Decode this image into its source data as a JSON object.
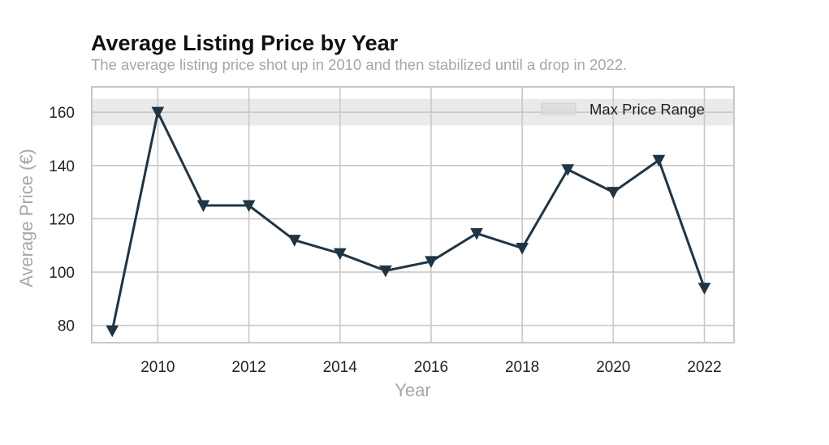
{
  "title": "Average Listing Price by Year",
  "subtitle": "The average listing price shot up in 2010 and then stabilized until a drop in 2022.",
  "chart_data": {
    "type": "line",
    "title": "Average Listing Price by Year",
    "subtitle": "The average listing price shot up in 2010 and then stabilized until a drop in 2022.",
    "xlabel": "Year",
    "ylabel": "Average Price (€)",
    "x": [
      2009,
      2010,
      2011,
      2012,
      2013,
      2014,
      2015,
      2016,
      2017,
      2018,
      2019,
      2020,
      2021,
      2022
    ],
    "series": [
      {
        "values": [
          78,
          160,
          125,
          125,
          112,
          107,
          100.5,
          104,
          114.5,
          109,
          138.5,
          130,
          142,
          94
        ],
        "color": "#1f3544",
        "marker": "triangle-down"
      }
    ],
    "xticks": [
      2010,
      2012,
      2014,
      2016,
      2018,
      2020,
      2022
    ],
    "yticks": [
      80,
      100,
      120,
      140,
      160
    ],
    "xlim": [
      2008.55,
      2022.65
    ],
    "ylim": [
      73.5,
      169.5
    ],
    "band": {
      "name": "Max Price Range",
      "from": 155,
      "to": 165,
      "color": "#d9d9d9"
    },
    "grid": true,
    "legend": {
      "position": "top-right",
      "entries": [
        "Max Price Range"
      ]
    }
  }
}
